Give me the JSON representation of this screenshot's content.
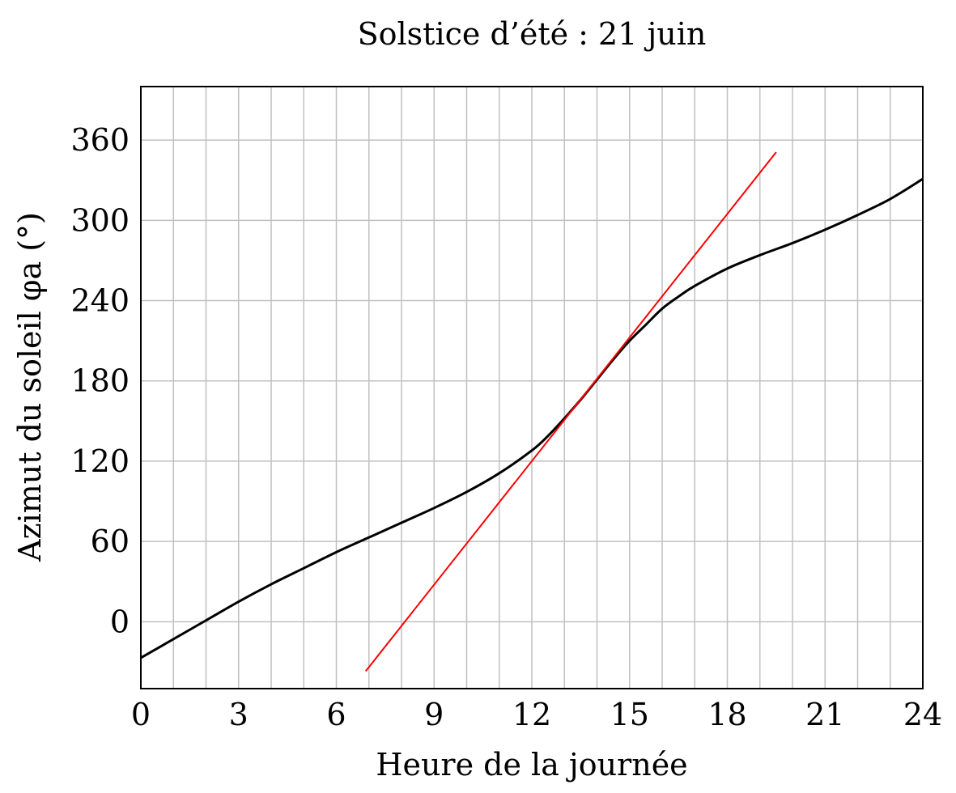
{
  "chart_data": {
    "type": "line",
    "title": "Solstice d’été : 21 juin",
    "xlabel": "Heure de la journée",
    "ylabel": "Azimut du soleil φa (°)",
    "xlim": [
      0,
      24
    ],
    "ylim": [
      -50,
      400
    ],
    "xticks": [
      0,
      3,
      6,
      9,
      12,
      15,
      18,
      21,
      24
    ],
    "yticks": [
      0,
      60,
      120,
      180,
      240,
      300,
      360
    ],
    "x_minor_grid_step": 1,
    "y_grid_step": 60,
    "grid": true,
    "series": [
      {
        "name": "",
        "color": "#000000",
        "x": [
          0,
          1,
          2,
          3,
          4,
          5,
          6,
          7,
          8,
          9,
          10,
          11,
          12,
          12.5,
          13,
          13.5,
          14,
          14.5,
          15,
          15.5,
          16,
          16.5,
          17,
          18,
          19,
          20,
          21,
          22,
          23,
          24
        ],
        "y": [
          -27,
          -13,
          1,
          15,
          28,
          40,
          52,
          63,
          74,
          85,
          97,
          111,
          128,
          139,
          152,
          166,
          181,
          196,
          210,
          222,
          234,
          243,
          251,
          264,
          274,
          283,
          293,
          304,
          316,
          331
        ]
      },
      {
        "name": "",
        "color": "#ff0000",
        "x": [
          6.9,
          19.5
        ],
        "y": [
          -37,
          351
        ]
      }
    ]
  },
  "colors": {
    "grid": "#c0c0c0",
    "axes": "#000000",
    "curve": "#000000",
    "tangent": "#ff0000"
  }
}
